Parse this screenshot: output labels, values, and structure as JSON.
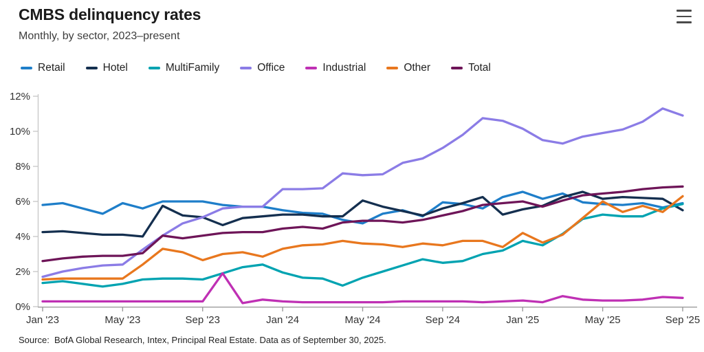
{
  "header": {
    "title": "CMBS delinquency rates",
    "subtitle": "Monthly, by sector, 2023–present"
  },
  "source_note": "Source:  BofA Global Research, Intex, Principal Real Estate. Data as of September 30, 2025.",
  "menu": {
    "icon": "hamburger-menu-icon"
  },
  "colors": {
    "background": "#ffffff",
    "y_axis": "#c9c9c9",
    "x_axis": "#9b9b9b",
    "axis_text": "#333333"
  },
  "chart_data": {
    "type": "line",
    "title": "CMBS delinquency rates",
    "subtitle": "Monthly, by sector, 2023–present",
    "x_start": "Jan 2023",
    "x_end": "Sep 2025",
    "x_step": "1 month",
    "n_points": 33,
    "x_tick_indices": [
      0,
      4,
      8,
      12,
      16,
      20,
      24,
      28,
      32
    ],
    "x_tick_labels": [
      "Jan '23",
      "May '23",
      "Sep '23",
      "Jan '24",
      "May '24",
      "Sep '24",
      "Jan '25",
      "May '25",
      "Sep '25"
    ],
    "ylim": [
      0,
      12
    ],
    "y_tick_step": 2,
    "y_tick_labels": [
      "0%",
      "2%",
      "4%",
      "6%",
      "8%",
      "10%",
      "12%"
    ],
    "grid": false,
    "legend_position": "top",
    "series": [
      {
        "name": "Retail",
        "color": "#1e7ec9",
        "values": [
          5.8,
          5.9,
          5.6,
          5.3,
          5.9,
          5.6,
          6.0,
          6.0,
          6.0,
          5.8,
          5.7,
          5.7,
          5.5,
          5.35,
          5.3,
          4.95,
          4.75,
          5.3,
          5.5,
          5.15,
          5.95,
          5.85,
          5.6,
          6.25,
          6.55,
          6.15,
          6.45,
          5.95,
          5.85,
          5.8,
          5.9,
          5.65,
          5.9
        ]
      },
      {
        "name": "Hotel",
        "color": "#142f4f",
        "values": [
          4.25,
          4.3,
          4.2,
          4.1,
          4.1,
          4.0,
          5.75,
          5.2,
          5.1,
          4.65,
          5.05,
          5.15,
          5.25,
          5.25,
          5.15,
          5.15,
          6.05,
          5.7,
          5.45,
          5.2,
          5.6,
          5.9,
          6.25,
          5.25,
          5.55,
          5.75,
          6.25,
          6.55,
          6.15,
          6.25,
          6.2,
          6.15,
          5.5
        ]
      },
      {
        "name": "MultiFamily",
        "color": "#00a3b1",
        "values": [
          1.35,
          1.45,
          1.3,
          1.15,
          1.3,
          1.55,
          1.6,
          1.6,
          1.55,
          1.9,
          2.25,
          2.4,
          1.95,
          1.65,
          1.6,
          1.2,
          1.65,
          2.0,
          2.35,
          2.7,
          2.5,
          2.6,
          3.0,
          3.2,
          3.75,
          3.5,
          4.15,
          5.0,
          5.25,
          5.15,
          5.15,
          5.6,
          5.85
        ]
      },
      {
        "name": "Office",
        "color": "#8b7ce6",
        "values": [
          1.7,
          2.0,
          2.2,
          2.35,
          2.4,
          3.25,
          4.05,
          4.75,
          5.1,
          5.6,
          5.7,
          5.7,
          6.7,
          6.7,
          6.75,
          7.6,
          7.5,
          7.55,
          8.2,
          8.45,
          9.05,
          9.8,
          10.75,
          10.6,
          10.15,
          9.5,
          9.3,
          9.7,
          9.9,
          10.1,
          10.55,
          11.3,
          10.9
        ]
      },
      {
        "name": "Industrial",
        "color": "#bf30b4",
        "values": [
          0.3,
          0.3,
          0.3,
          0.3,
          0.3,
          0.3,
          0.3,
          0.3,
          0.3,
          1.9,
          0.2,
          0.4,
          0.3,
          0.25,
          0.25,
          0.25,
          0.25,
          0.25,
          0.3,
          0.3,
          0.3,
          0.3,
          0.25,
          0.3,
          0.35,
          0.25,
          0.6,
          0.4,
          0.35,
          0.35,
          0.4,
          0.55,
          0.5
        ]
      },
      {
        "name": "Other",
        "color": "#e8771e",
        "values": [
          1.55,
          1.6,
          1.6,
          1.6,
          1.6,
          2.4,
          3.3,
          3.1,
          2.65,
          3.0,
          3.1,
          2.85,
          3.3,
          3.5,
          3.55,
          3.75,
          3.6,
          3.55,
          3.4,
          3.6,
          3.5,
          3.75,
          3.75,
          3.4,
          4.2,
          3.65,
          4.1,
          5.05,
          6.0,
          5.4,
          5.75,
          5.4,
          6.3
        ]
      },
      {
        "name": "Total",
        "color": "#6e1558",
        "values": [
          2.6,
          2.75,
          2.85,
          2.9,
          2.9,
          3.05,
          4.05,
          3.9,
          4.05,
          4.2,
          4.25,
          4.25,
          4.45,
          4.55,
          4.45,
          4.8,
          4.9,
          4.9,
          4.8,
          4.95,
          5.2,
          5.45,
          5.8,
          5.9,
          6.0,
          5.7,
          6.05,
          6.35,
          6.45,
          6.55,
          6.7,
          6.8,
          6.85
        ]
      }
    ]
  }
}
